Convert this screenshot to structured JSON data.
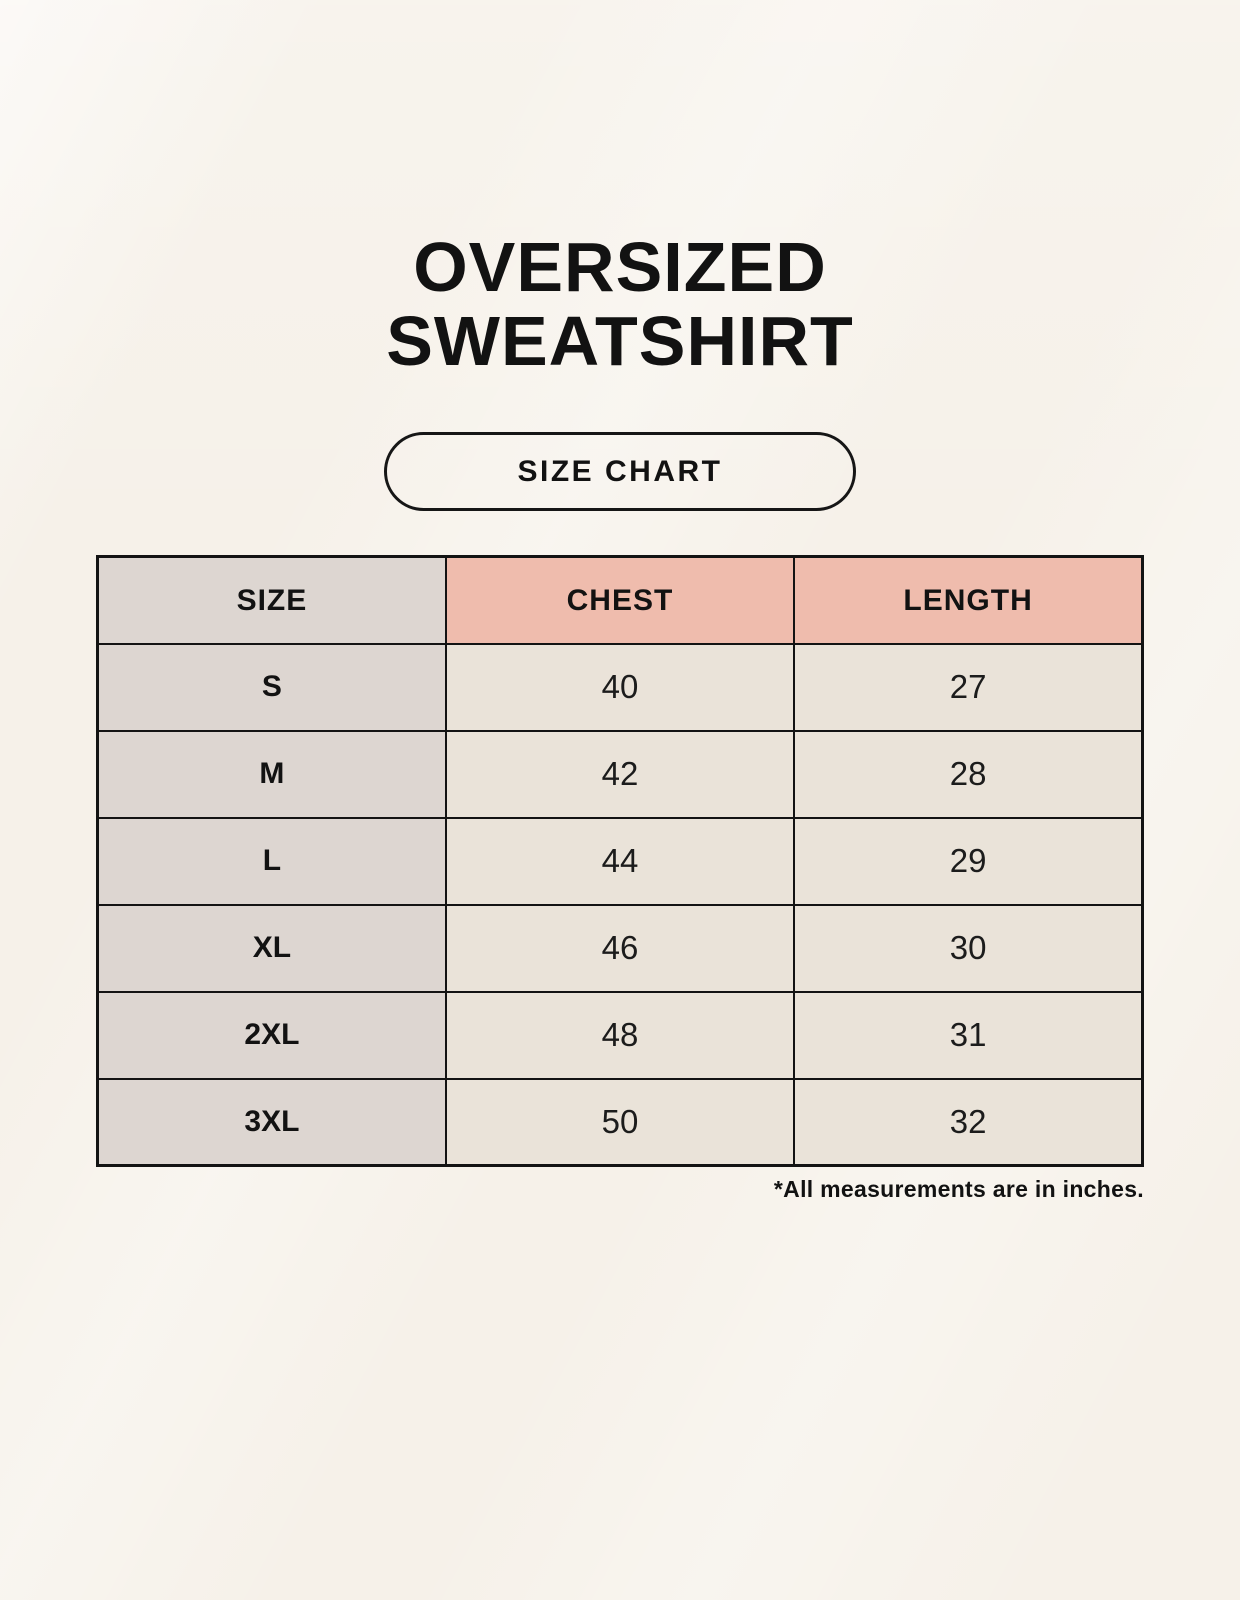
{
  "title": {
    "line1": "OVERSIZED",
    "line2": "SWEATSHIRT"
  },
  "badge": {
    "label": "SIZE CHART"
  },
  "table": {
    "headers": {
      "size": "SIZE",
      "chest": "CHEST",
      "length": "LENGTH"
    },
    "rows": [
      {
        "size": "S",
        "chest": "40",
        "length": "27"
      },
      {
        "size": "M",
        "chest": "42",
        "length": "28"
      },
      {
        "size": "L",
        "chest": "44",
        "length": "29"
      },
      {
        "size": "XL",
        "chest": "46",
        "length": "30"
      },
      {
        "size": "2XL",
        "chest": "48",
        "length": "31"
      },
      {
        "size": "3XL",
        "chest": "50",
        "length": "32"
      }
    ]
  },
  "note": "*All measurements are in inches.",
  "colors": {
    "background": "#f6f1e9",
    "header_size_bg": "#ddd6d1",
    "header_measure_bg": "#efbcad",
    "row_label_bg": "#ddd6d1",
    "value_cell_bg": "#eae3d9",
    "border": "#131313",
    "text": "#151515"
  },
  "chart_data": {
    "type": "table",
    "title": "OVERSIZED SWEATSHIRT",
    "columns": [
      "SIZE",
      "CHEST",
      "LENGTH"
    ],
    "rows": [
      [
        "S",
        40,
        27
      ],
      [
        "M",
        42,
        28
      ],
      [
        "L",
        44,
        29
      ],
      [
        "XL",
        46,
        30
      ],
      [
        "2XL",
        48,
        31
      ],
      [
        "3XL",
        50,
        32
      ]
    ],
    "units": "inches",
    "note": "*All measurements are in inches."
  }
}
